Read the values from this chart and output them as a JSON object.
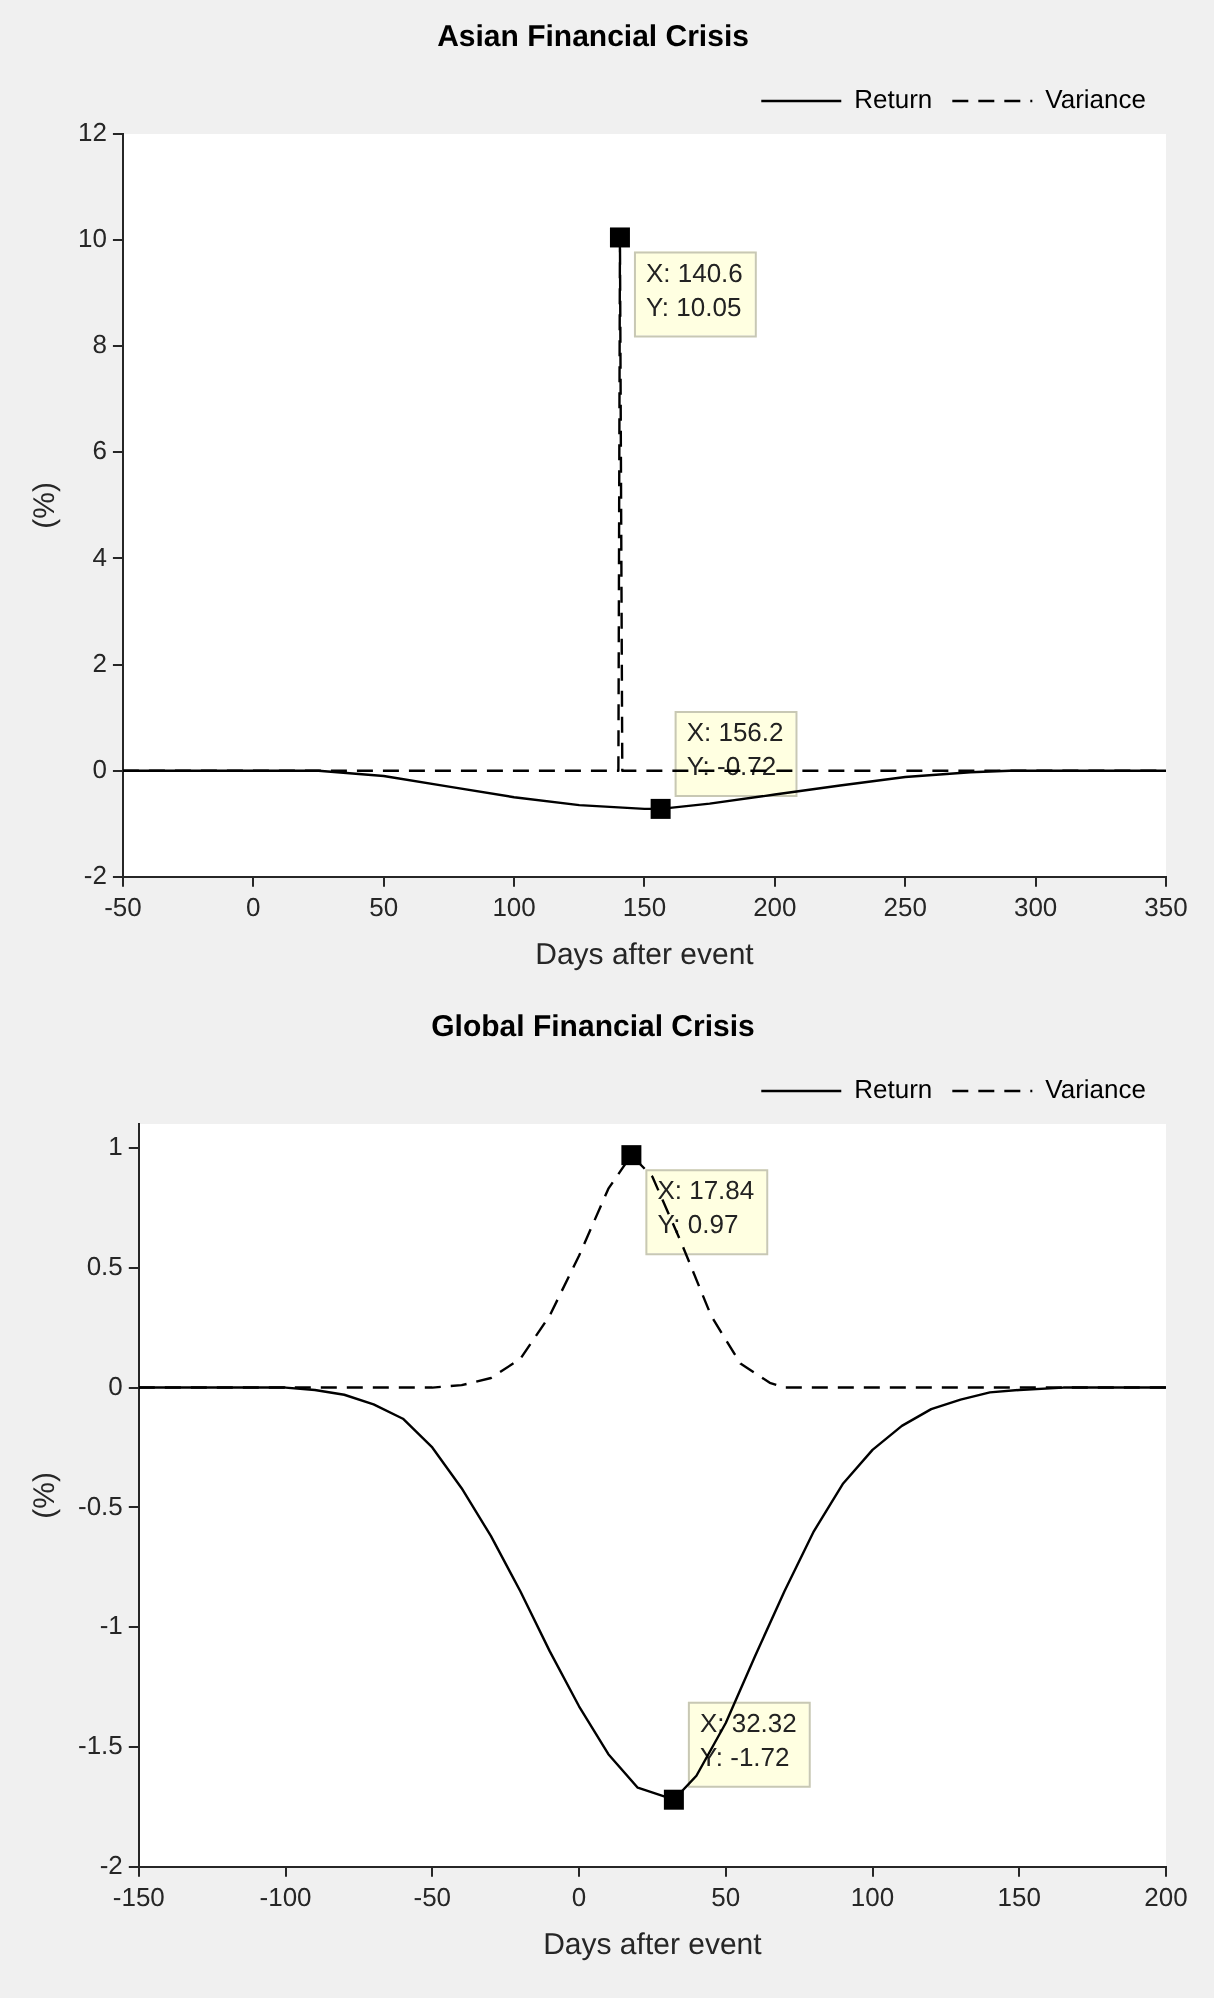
{
  "chart_data": [
    {
      "type": "line",
      "title": "Asian Financial Crisis",
      "xlabel": "Days after event",
      "ylabel": "(%)",
      "xlim": [
        -50,
        350
      ],
      "xticks": [
        -50,
        0,
        50,
        100,
        150,
        200,
        250,
        300,
        350
      ],
      "ylim": [
        -2,
        12
      ],
      "yticks": [
        -2,
        0,
        2,
        4,
        6,
        8,
        10,
        12
      ],
      "grid": false,
      "legend": "top right",
      "marker": "none",
      "series": [
        {
          "name": "Return",
          "color": "#000000",
          "line_style": "solid",
          "x": [
            -50,
            25,
            50,
            75,
            100,
            125,
            150,
            156.2,
            175,
            200,
            225,
            250,
            275,
            290,
            350
          ],
          "values": [
            0,
            0,
            -0.1,
            -0.3,
            -0.5,
            -0.65,
            -0.72,
            -0.72,
            -0.62,
            -0.45,
            -0.28,
            -0.12,
            -0.03,
            0,
            0
          ]
        },
        {
          "name": "Variance",
          "color": "#000000",
          "line_style": "dashed",
          "x": [
            -50,
            140,
            140.6,
            141.5,
            350
          ],
          "values": [
            0,
            0,
            10.05,
            0,
            0
          ]
        }
      ],
      "annotations": [
        {
          "text": "X: 140.6\nY: 10.05",
          "x": 140.6,
          "y": 10.05
        },
        {
          "text": "X: 156.2\nY: -0.72",
          "x": 156.2,
          "y": -0.72
        }
      ]
    },
    {
      "type": "line",
      "title": "Global Financial Crisis",
      "xlabel": "Days after event",
      "ylabel": "(%)",
      "xlim": [
        -150,
        200
      ],
      "xticks": [
        -150,
        -100,
        -50,
        0,
        50,
        100,
        150,
        200
      ],
      "ylim": [
        -2,
        1.1
      ],
      "yticks": [
        -2,
        -1.5,
        -1,
        -0.5,
        0,
        0.5,
        1
      ],
      "grid": false,
      "legend": "top right",
      "marker": "none",
      "series": [
        {
          "name": "Return",
          "color": "#000000",
          "line_style": "solid",
          "x": [
            -150,
            -100,
            -90,
            -80,
            -70,
            -60,
            -50,
            -40,
            -30,
            -20,
            -10,
            0,
            10,
            20,
            32.32,
            40,
            50,
            60,
            70,
            80,
            90,
            100,
            110,
            120,
            130,
            140,
            150,
            165,
            200
          ],
          "values": [
            0,
            0,
            -0.01,
            -0.03,
            -0.07,
            -0.13,
            -0.25,
            -0.42,
            -0.62,
            -0.85,
            -1.1,
            -1.33,
            -1.53,
            -1.67,
            -1.72,
            -1.62,
            -1.4,
            -1.12,
            -0.85,
            -0.6,
            -0.4,
            -0.26,
            -0.16,
            -0.09,
            -0.05,
            -0.02,
            -0.01,
            0,
            0
          ]
        },
        {
          "name": "Variance",
          "color": "#000000",
          "line_style": "dashed",
          "x": [
            -150,
            -50,
            -40,
            -30,
            -20,
            -10,
            0,
            10,
            17.84,
            25,
            35,
            45,
            55,
            65,
            70,
            200
          ],
          "values": [
            0,
            0,
            0.01,
            0.04,
            0.12,
            0.3,
            0.55,
            0.83,
            0.97,
            0.88,
            0.6,
            0.3,
            0.1,
            0.02,
            0,
            0
          ]
        }
      ],
      "annotations": [
        {
          "text": "X: 17.84\nY: 0.97",
          "x": 17.84,
          "y": 0.97
        },
        {
          "text": "X: 32.32\nY: -1.72",
          "x": 32.32,
          "y": -1.72
        }
      ]
    }
  ]
}
